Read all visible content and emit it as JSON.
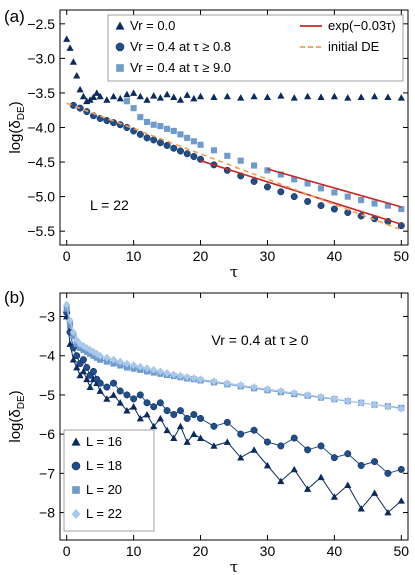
{
  "chart_data": [
    {
      "panel": "(a)",
      "type": "scatter",
      "xlabel": "τ",
      "ylabel": "log(δDE)",
      "xlim": [
        -1,
        51
      ],
      "ylim": [
        -5.7,
        -2.3
      ],
      "xticks": [
        0,
        10,
        20,
        30,
        40,
        50
      ],
      "yticks": [
        -5.5,
        -5.0,
        -4.5,
        -4.0,
        -3.5,
        -3.0,
        -2.5
      ],
      "yticklabels": [
        "−5.5",
        "−5.0",
        "−4.5",
        "−4.0",
        "−3.5",
        "−3.0",
        "−2.5"
      ],
      "annotation": "L = 22",
      "legend_placement": "top",
      "series": [
        {
          "name": "Vr = 0.0",
          "marker": "triangle",
          "color": "#0b2a5e",
          "x": [
            0,
            0.5,
            1,
            1.5,
            2,
            2.5,
            3,
            3.5,
            4,
            4.5,
            5,
            6,
            7,
            8,
            9,
            10,
            11,
            12,
            13,
            14,
            15,
            16,
            17,
            18,
            19,
            20,
            22,
            24,
            26,
            28,
            30,
            32,
            34,
            36,
            38,
            40,
            42,
            44,
            46,
            48,
            50
          ],
          "y": [
            -2.72,
            -2.85,
            -3.05,
            -3.25,
            -3.45,
            -3.55,
            -3.62,
            -3.6,
            -3.56,
            -3.5,
            -3.55,
            -3.6,
            -3.55,
            -3.58,
            -3.52,
            -3.5,
            -3.55,
            -3.6,
            -3.54,
            -3.57,
            -3.52,
            -3.56,
            -3.6,
            -3.53,
            -3.58,
            -3.55,
            -3.56,
            -3.55,
            -3.57,
            -3.55,
            -3.56,
            -3.54,
            -3.57,
            -3.55,
            -3.56,
            -3.55,
            -3.57,
            -3.56,
            -3.55,
            -3.56,
            -3.57
          ]
        },
        {
          "name": "Vr = 0.4 at τ ≥ 0.8",
          "marker": "circle",
          "color": "#1f4e8c",
          "x": [
            1,
            2,
            3,
            4,
            5,
            6,
            7,
            8,
            9,
            10,
            11,
            12,
            13,
            14,
            15,
            16,
            17,
            18,
            19,
            20,
            22,
            24,
            26,
            28,
            30,
            32,
            34,
            36,
            38,
            40,
            42,
            44,
            46,
            48,
            50
          ],
          "y": [
            -3.68,
            -3.72,
            -3.77,
            -3.83,
            -3.87,
            -3.9,
            -3.93,
            -3.96,
            -4.0,
            -4.05,
            -4.1,
            -4.15,
            -4.18,
            -4.22,
            -4.26,
            -4.3,
            -4.34,
            -4.38,
            -4.42,
            -4.46,
            -4.54,
            -4.62,
            -4.7,
            -4.78,
            -4.86,
            -4.93,
            -5.0,
            -5.07,
            -5.13,
            -5.18,
            -5.23,
            -5.28,
            -5.32,
            -5.36,
            -5.42
          ]
        },
        {
          "name": "Vr = 0.4 at τ ≥ 9.0",
          "marker": "square",
          "color": "#6e9bcb",
          "x": [
            9,
            10,
            11,
            12,
            13,
            14,
            15,
            16,
            17,
            18,
            19,
            20,
            22,
            24,
            26,
            28,
            30,
            32,
            34,
            36,
            38,
            40,
            42,
            44,
            46,
            48,
            50
          ],
          "y": [
            -3.62,
            -3.72,
            -3.85,
            -3.92,
            -3.96,
            -3.98,
            -4.02,
            -4.05,
            -4.1,
            -4.15,
            -4.2,
            -4.25,
            -4.33,
            -4.41,
            -4.48,
            -4.55,
            -4.62,
            -4.68,
            -4.75,
            -4.81,
            -4.88,
            -4.94,
            -5.0,
            -5.05,
            -5.1,
            -5.13,
            -5.18
          ]
        },
        {
          "name": "exp(−0.03τ)",
          "marker": "line",
          "color": "#c62828",
          "x": [
            20,
            50
          ],
          "y": [
            -4.48,
            -5.4
          ]
        },
        {
          "name": "exp(−0.03τ)",
          "marker": "line",
          "color": "#c62828",
          "x": [
            30,
            50
          ],
          "y": [
            -4.6,
            -5.15
          ]
        },
        {
          "name": "initial DE",
          "marker": "dashed",
          "color": "#f39c50",
          "x": [
            0,
            50
          ],
          "y": [
            -3.65,
            -5.48
          ]
        }
      ]
    },
    {
      "panel": "(b)",
      "type": "line",
      "xlabel": "τ",
      "ylabel": "log(δDE)",
      "xlim": [
        -1,
        51
      ],
      "ylim": [
        -8.7,
        -2.4
      ],
      "xticks": [
        0,
        10,
        20,
        30,
        40,
        50
      ],
      "yticks": [
        -8,
        -7,
        -6,
        -5,
        -4,
        -3
      ],
      "yticklabels": [
        "−8",
        "−7",
        "−6",
        "−5",
        "−4",
        "−3"
      ],
      "annotation": "Vr = 0.4 at τ ≥ 0",
      "legend_placement": "bottom-left",
      "series": [
        {
          "name": "L = 16",
          "marker": "triangle",
          "color": "#0b2a5e",
          "x": [
            0,
            0.5,
            1,
            1.5,
            2,
            2.5,
            3,
            3.5,
            4,
            4.5,
            5,
            6,
            7,
            8,
            9,
            10,
            11,
            12,
            13,
            14,
            15,
            16,
            17,
            18,
            19,
            20,
            22,
            24,
            26,
            28,
            30,
            32,
            34,
            36,
            38,
            40,
            42,
            44,
            46,
            48,
            50
          ],
          "y": [
            -3.0,
            -3.7,
            -4.1,
            -4.3,
            -4.5,
            -4.4,
            -4.6,
            -4.8,
            -4.6,
            -4.7,
            -4.9,
            -5.1,
            -5.0,
            -5.2,
            -5.4,
            -5.3,
            -5.6,
            -5.5,
            -5.8,
            -5.6,
            -5.9,
            -6.1,
            -5.8,
            -6.2,
            -6.0,
            -6.1,
            -6.3,
            -6.2,
            -6.6,
            -6.4,
            -6.8,
            -7.2,
            -6.9,
            -7.4,
            -7.1,
            -7.6,
            -7.3,
            -7.9,
            -7.5,
            -8.0,
            -7.7
          ]
        },
        {
          "name": "L = 18",
          "marker": "circle",
          "color": "#1f4e8c",
          "x": [
            0,
            0.5,
            1,
            1.5,
            2,
            2.5,
            3,
            3.5,
            4,
            4.5,
            5,
            6,
            7,
            8,
            9,
            10,
            11,
            12,
            13,
            14,
            15,
            16,
            17,
            18,
            19,
            20,
            22,
            24,
            26,
            28,
            30,
            32,
            34,
            36,
            38,
            40,
            42,
            44,
            46,
            48,
            50
          ],
          "y": [
            -2.9,
            -3.4,
            -3.8,
            -4.0,
            -4.2,
            -4.1,
            -4.3,
            -4.5,
            -4.4,
            -4.6,
            -4.7,
            -4.8,
            -4.7,
            -4.9,
            -5.0,
            -5.1,
            -5.0,
            -5.2,
            -5.3,
            -5.2,
            -5.4,
            -5.5,
            -5.4,
            -5.6,
            -5.5,
            -5.6,
            -5.8,
            -5.7,
            -6.0,
            -5.9,
            -6.2,
            -6.3,
            -6.1,
            -6.4,
            -6.3,
            -6.6,
            -6.5,
            -6.8,
            -6.7,
            -7.0,
            -6.9
          ]
        },
        {
          "name": "L = 20",
          "marker": "square",
          "color": "#6e9bcb",
          "x": [
            0,
            0.5,
            1,
            1.5,
            2,
            2.5,
            3,
            3.5,
            4,
            4.5,
            5,
            6,
            7,
            8,
            9,
            10,
            11,
            12,
            13,
            14,
            15,
            16,
            17,
            18,
            19,
            20,
            22,
            24,
            26,
            28,
            30,
            32,
            34,
            36,
            38,
            40,
            42,
            44,
            46,
            48,
            50
          ],
          "y": [
            -2.8,
            -3.2,
            -3.5,
            -3.7,
            -3.8,
            -3.85,
            -3.9,
            -3.95,
            -4.0,
            -4.05,
            -4.1,
            -4.15,
            -4.2,
            -4.25,
            -4.3,
            -4.33,
            -4.36,
            -4.4,
            -4.43,
            -4.46,
            -4.49,
            -4.52,
            -4.55,
            -4.58,
            -4.6,
            -4.63,
            -4.68,
            -4.73,
            -4.78,
            -4.83,
            -4.88,
            -4.93,
            -4.98,
            -5.02,
            -5.07,
            -5.11,
            -5.16,
            -5.2,
            -5.25,
            -5.29,
            -5.33
          ]
        },
        {
          "name": "L = 22",
          "marker": "diamond",
          "color": "#a9c8ec",
          "x": [
            0,
            0.5,
            1,
            1.5,
            2,
            2.5,
            3,
            3.5,
            4,
            4.5,
            5,
            6,
            7,
            8,
            9,
            10,
            11,
            12,
            13,
            14,
            15,
            16,
            17,
            18,
            19,
            20,
            22,
            24,
            26,
            28,
            30,
            32,
            34,
            36,
            38,
            40,
            42,
            44,
            46,
            48,
            50
          ],
          "y": [
            -2.7,
            -3.1,
            -3.4,
            -3.6,
            -3.7,
            -3.75,
            -3.8,
            -3.85,
            -3.9,
            -3.95,
            -4.0,
            -4.05,
            -4.1,
            -4.15,
            -4.2,
            -4.24,
            -4.28,
            -4.32,
            -4.36,
            -4.4,
            -4.44,
            -4.48,
            -4.51,
            -4.54,
            -4.57,
            -4.6,
            -4.65,
            -4.7,
            -4.75,
            -4.8,
            -4.85,
            -4.9,
            -4.95,
            -5.0,
            -5.05,
            -5.1,
            -5.15,
            -5.2,
            -5.25,
            -5.3,
            -5.35
          ]
        }
      ]
    }
  ]
}
